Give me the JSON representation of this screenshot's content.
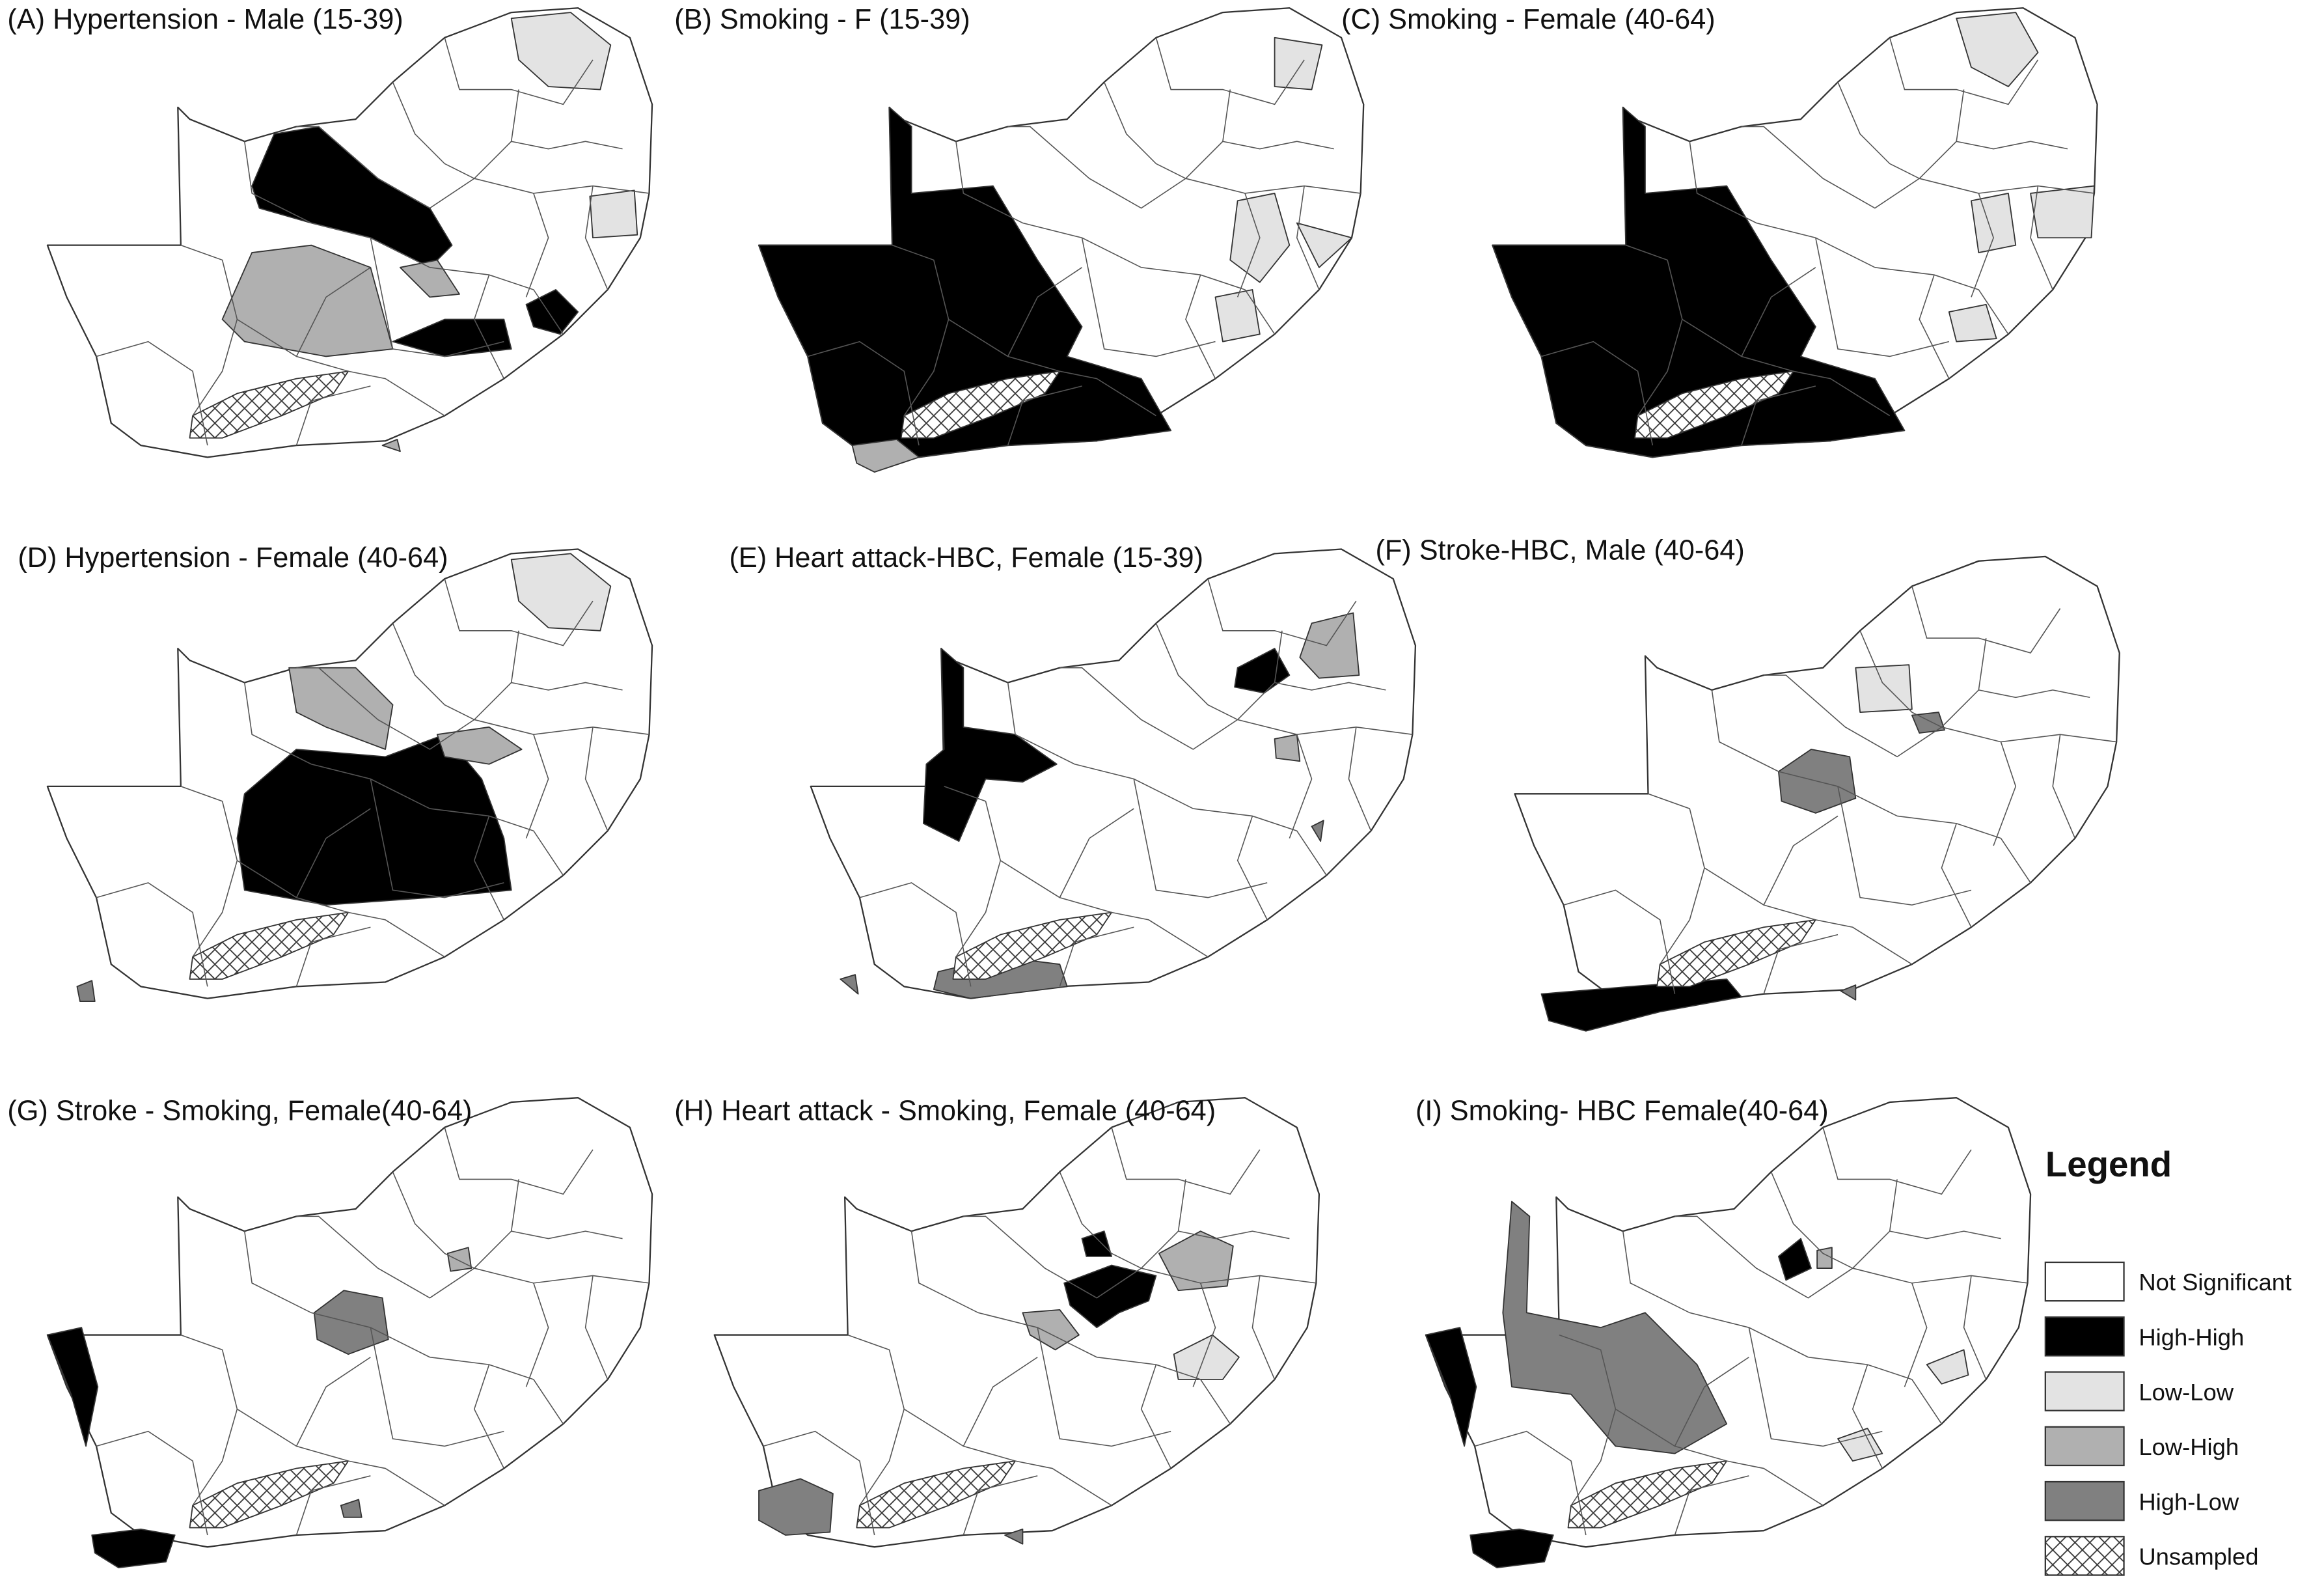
{
  "panels": [
    {
      "title": "(A) Hypertension - Male (15-39)"
    },
    {
      "title": "(B) Smoking - F (15-39)"
    },
    {
      "title": "(C) Smoking - Female (40-64)"
    },
    {
      "title": "(D) Hypertension - Female (40-64)"
    },
    {
      "title": "(E) Heart attack-HBC, Female (15-39)"
    },
    {
      "title": "(F) Stroke-HBC, Male (40-64)"
    },
    {
      "title": "(G) Stroke - Smoking, Female(40-64)"
    },
    {
      "title": "(H) Heart attack - Smoking, Female (40-64)"
    },
    {
      "title": "(I) Smoking- HBC Female(40-64)"
    }
  ],
  "legend": {
    "title": "Legend",
    "items": [
      {
        "label": "Not Significant",
        "color": "#ffffff"
      },
      {
        "label": "High-High",
        "color": "#000000"
      },
      {
        "label": "Low-Low",
        "color": "#e3e3e3"
      },
      {
        "label": "Low-High",
        "color": "#b0b0b0"
      },
      {
        "label": "High-Low",
        "color": "#808080"
      },
      {
        "label": "Unsampled",
        "color": "#ffffff",
        "hatch": true
      }
    ]
  }
}
